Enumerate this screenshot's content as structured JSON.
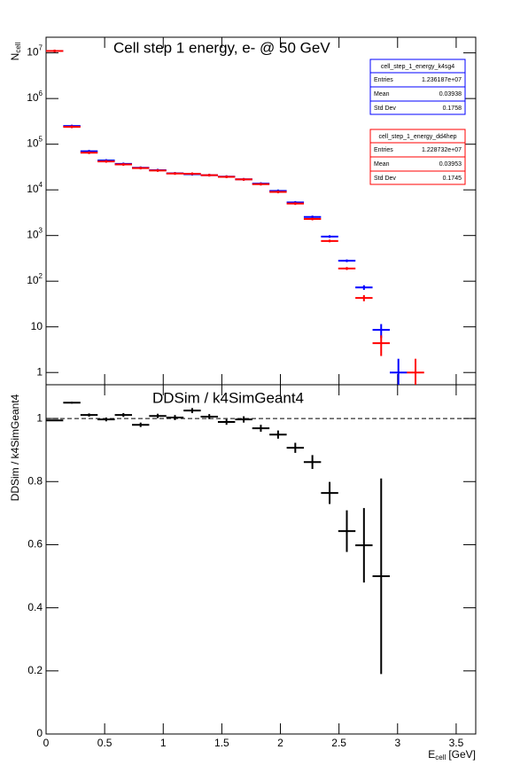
{
  "chart_data": [
    {
      "type": "histogram-points",
      "title": "Cell step 1 energy,  e- @ 50 GeV",
      "y_label": "N",
      "y_label_sub": "cell",
      "log_y": true,
      "x": [
        0.073,
        0.22,
        0.367,
        0.513,
        0.66,
        0.807,
        0.953,
        1.1,
        1.247,
        1.393,
        1.54,
        1.687,
        1.833,
        1.98,
        2.127,
        2.273,
        2.42,
        2.567,
        2.713,
        2.86,
        3.007,
        3.153
      ],
      "xlim": [
        0,
        3.667
      ],
      "xticks": [
        0,
        0.5,
        1,
        1.5,
        2,
        2.5,
        3,
        3.5
      ],
      "ylim": [
        0.54,
        22000000
      ],
      "yticks": [
        1,
        10,
        {
          "value": 100,
          "label": "10^2"
        },
        {
          "value": 1000,
          "label": "10^3"
        },
        {
          "value": 10000,
          "label": "10^4"
        },
        {
          "value": 100000,
          "label": "10^5"
        },
        {
          "value": 1000000,
          "label": "10^6"
        },
        {
          "value": 10000000,
          "label": "10^7"
        }
      ],
      "series": [
        {
          "name": "cell_step_1_energy_k4sg4",
          "color": "#0000ff",
          "values": [
            11000000,
            250000,
            70000,
            44000,
            37000,
            30500,
            27000,
            23000,
            22000,
            21000,
            19500,
            17000,
            13700,
            9500,
            5300,
            2550,
            950,
            280,
            73,
            8.6,
            1,
            null
          ],
          "errors": [
            null,
            null,
            null,
            null,
            null,
            null,
            null,
            null,
            null,
            null,
            null,
            null,
            null,
            null,
            null,
            null,
            null,
            null,
            8.5,
            2.9,
            1,
            null
          ],
          "stats": [
            {
              "label": "Entries",
              "value": "1.236187e+07"
            },
            {
              "label": "Mean",
              "value": "0.03938"
            },
            {
              "label": "Std Dev",
              "value": "0.1758"
            }
          ]
        },
        {
          "name": "cell_step_1_energy_dd4hep",
          "color": "#ff0000",
          "values": [
            11000000,
            240000,
            65000,
            42000,
            36000,
            30000,
            26500,
            22800,
            22500,
            21000,
            19300,
            16900,
            13300,
            9000,
            5000,
            2300,
            760,
            190,
            43,
            4.4,
            null,
            1
          ],
          "errors": [
            null,
            null,
            null,
            null,
            null,
            null,
            null,
            null,
            null,
            null,
            null,
            null,
            null,
            null,
            null,
            null,
            null,
            14,
            6.6,
            2.1,
            null,
            1
          ],
          "stats": [
            {
              "label": "Entries",
              "value": "1.228732e+07"
            },
            {
              "label": "Mean",
              "value": "0.03953"
            },
            {
              "label": "Std Dev",
              "value": "0.1745"
            }
          ]
        }
      ]
    },
    {
      "type": "ratio-points",
      "title": "DDSim / k4SimGeant4",
      "y_label": "DDSim / k4SimGeant4",
      "x_label": "E",
      "x_label_sub": "cell",
      "x_label_unit": "[GeV]",
      "x": [
        0.073,
        0.22,
        0.367,
        0.513,
        0.66,
        0.807,
        0.953,
        1.1,
        1.247,
        1.393,
        1.54,
        1.687,
        1.833,
        1.98,
        2.127,
        2.273,
        2.42,
        2.567,
        2.713,
        2.86
      ],
      "xlim": [
        0,
        3.667
      ],
      "xticks": [
        0,
        0.5,
        1,
        1.5,
        2,
        2.5,
        3,
        3.5
      ],
      "ylim": [
        0,
        1.107
      ],
      "yticks": [
        0,
        0.2,
        0.4,
        0.6,
        0.8,
        1
      ],
      "ref_line": 1,
      "color": "#000000",
      "values": [
        0.994,
        1.05,
        1.011,
        0.997,
        1.011,
        0.98,
        1.008,
        1.003,
        1.025,
        1.006,
        0.989,
        0.997,
        0.969,
        0.949,
        0.907,
        0.862,
        0.764,
        0.643,
        0.598,
        0.5
      ],
      "errors": [
        0.002,
        0.003,
        0.005,
        0.006,
        0.006,
        0.007,
        0.007,
        0.008,
        0.008,
        0.008,
        0.009,
        0.01,
        0.011,
        0.013,
        0.016,
        0.022,
        0.035,
        0.066,
        0.118,
        0.31
      ]
    }
  ]
}
